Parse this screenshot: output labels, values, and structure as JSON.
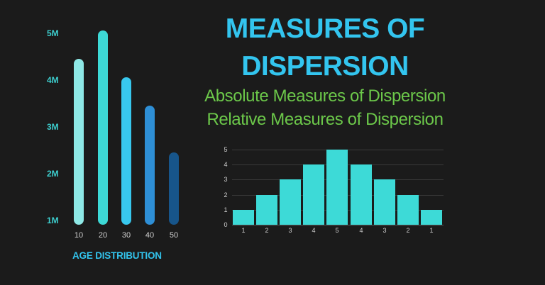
{
  "header": {
    "title_line1": "MEASURES OF",
    "title_line2": "DISPERSION",
    "subtitle_1": "Absolute Measures of Dispersion",
    "subtitle_2": "Relative Measures of Dispersion"
  },
  "colors": {
    "background": "#1b1b1b",
    "title": "#33c5ef",
    "subtitle": "#6cc84a",
    "axis_label": "#3dcfcf",
    "histogram_bar": "#3ddad7"
  },
  "chart_data": [
    {
      "type": "bar",
      "title": "AGE DISTRIBUTION",
      "xlabel": "AGE DISTRIBUTION",
      "ylabel": "",
      "categories": [
        "10",
        "20",
        "30",
        "40",
        "50"
      ],
      "values": [
        4.4,
        5.0,
        4.0,
        3.4,
        2.4
      ],
      "value_unit": "M",
      "bar_colors": [
        "#8ee8e6",
        "#3dd9d6",
        "#38c8ee",
        "#2e8fd6",
        "#17558a"
      ],
      "yticks": [
        "5M",
        "4M",
        "3M",
        "2M",
        "1M"
      ],
      "ylim": [
        1,
        5
      ],
      "grid": false,
      "legend": null,
      "style": "rounded pill bars"
    },
    {
      "type": "bar",
      "title": "",
      "xlabel": "",
      "ylabel": "",
      "categories": [
        "1",
        "2",
        "3",
        "4",
        "5",
        "4",
        "3",
        "2",
        "1"
      ],
      "values": [
        1,
        2,
        3,
        4,
        5,
        4,
        3,
        2,
        1
      ],
      "yticks": [
        "5",
        "4",
        "3",
        "2",
        "1",
        "0"
      ],
      "ylim": [
        0,
        5
      ],
      "grid": true,
      "legend": null,
      "style": "histogram, symmetric distribution"
    }
  ]
}
